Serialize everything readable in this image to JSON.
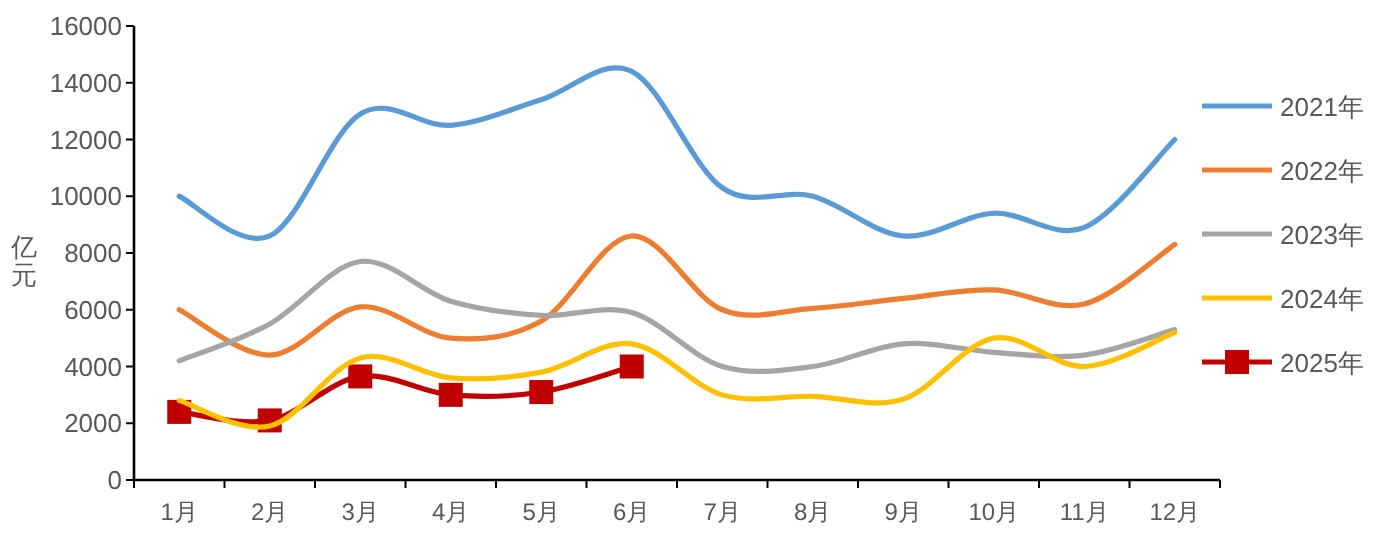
{
  "chart_data": {
    "type": "line",
    "ylabel": "亿元",
    "categories": [
      "1月",
      "2月",
      "3月",
      "4月",
      "5月",
      "6月",
      "7月",
      "8月",
      "9月",
      "10月",
      "11月",
      "12月"
    ],
    "ylim": [
      0,
      16000
    ],
    "yticks": [
      0,
      2000,
      4000,
      6000,
      8000,
      10000,
      12000,
      14000,
      16000
    ],
    "legend": "right",
    "marker": "none",
    "series": [
      {
        "name": "2021年",
        "color": "#5b9bd5",
        "values": [
          10000,
          8600,
          12900,
          12500,
          13400,
          14400,
          10300,
          10000,
          8600,
          9400,
          8900,
          12000
        ]
      },
      {
        "name": "2022年",
        "color": "#ed7d31",
        "values": [
          6000,
          4400,
          6100,
          5000,
          5600,
          8600,
          6000,
          6050,
          6400,
          6700,
          6200,
          8300
        ]
      },
      {
        "name": "2023年",
        "color": "#a5a5a5",
        "values": [
          4200,
          5500,
          7700,
          6300,
          5800,
          5900,
          4000,
          4000,
          4800,
          4500,
          4400,
          5300
        ]
      },
      {
        "name": "2024年",
        "color": "#ffc000",
        "values": [
          2800,
          1900,
          4300,
          3600,
          3800,
          4800,
          3000,
          2950,
          2850,
          5000,
          4000,
          5200
        ]
      },
      {
        "name": "2025年",
        "color": "#c00000",
        "marker": "square",
        "values": [
          2400,
          2100,
          3650,
          3000,
          3100,
          4000,
          null,
          null,
          null,
          null,
          null,
          null
        ]
      }
    ]
  }
}
